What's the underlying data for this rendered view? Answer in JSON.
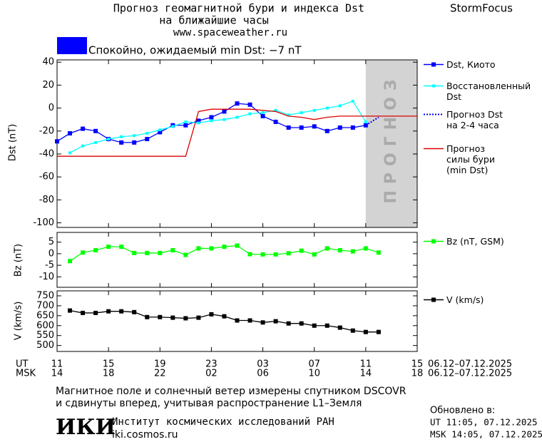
{
  "header": {
    "title_line1": "Прогноз геомагнитной бури и индекса Dst",
    "title_line2": "на ближайшие часы",
    "url": "www.spaceweather.ru",
    "brand": "StormFocus"
  },
  "status": {
    "text": "Спокойно, ожидаемый min Dst: −7 nT",
    "color": "#0000ff"
  },
  "time_axis": {
    "xlim": [
      0,
      28
    ],
    "ut_label": "UT",
    "ut_ticks": [
      {
        "value": 0,
        "label": "11"
      },
      {
        "value": 4,
        "label": "15"
      },
      {
        "value": 8,
        "label": "19"
      },
      {
        "value": 12,
        "label": "23"
      },
      {
        "value": 16,
        "label": "03"
      },
      {
        "value": 20,
        "label": "07"
      },
      {
        "value": 24,
        "label": "11"
      },
      {
        "value": 28,
        "label": "15"
      }
    ],
    "ut_dates": "06.12–07.12.2025",
    "msk_label": "MSK",
    "msk_ticks": [
      {
        "value": 0,
        "label": "14"
      },
      {
        "value": 4,
        "label": "18"
      },
      {
        "value": 8,
        "label": "22"
      },
      {
        "value": 12,
        "label": "02"
      },
      {
        "value": 16,
        "label": "06"
      },
      {
        "value": 20,
        "label": "10"
      },
      {
        "value": 24,
        "label": "14"
      },
      {
        "value": 28,
        "label": "18"
      }
    ],
    "msk_dates": "06.12–07.12.2025"
  },
  "chart_data": [
    {
      "type": "line",
      "ylabel": "Dst (nT)",
      "ylim": [
        -104,
        42
      ],
      "yticks": [
        40,
        20,
        0,
        -20,
        -40,
        -60,
        -80,
        -100
      ],
      "forecast_zone": [
        24,
        28
      ],
      "forecast_label": "ПРОГНОЗ",
      "series": [
        {
          "name": "Dst, Киото",
          "color": "#0000ff",
          "marker": "square",
          "x": [
            0,
            1,
            2,
            3,
            4,
            5,
            6,
            7,
            8,
            9,
            10,
            11,
            12,
            13,
            14,
            15,
            16,
            17,
            18,
            19,
            20,
            21,
            22,
            23,
            24
          ],
          "values": [
            -29,
            -22,
            -18,
            -20,
            -27,
            -30,
            -30,
            -27,
            -21,
            -15,
            -15,
            -11,
            -8,
            -3,
            4,
            3,
            -7,
            -12,
            -17,
            -17,
            -16,
            -20,
            -17,
            -17,
            -15
          ]
        },
        {
          "name": "Восстановленный\nDst",
          "color": "#00ffff",
          "marker": "small-square",
          "x": [
            1,
            2,
            3,
            4,
            5,
            6,
            7,
            8,
            9,
            10,
            11,
            12,
            13,
            14,
            15,
            16,
            17,
            18,
            19,
            20,
            21,
            22,
            23,
            24
          ],
          "values": [
            -39,
            -33,
            -30,
            -27,
            -25,
            -24,
            -22,
            -19,
            -16,
            -12,
            -13,
            -11,
            -10,
            -8,
            -5,
            -4,
            -2,
            -6,
            -4,
            -2,
            0,
            2,
            6,
            -12
          ]
        },
        {
          "name": "Прогноз Dst\nна 2-4 часа",
          "color": "#0000ff",
          "dash": true,
          "x": [
            24,
            25
          ],
          "values": [
            -15,
            -8
          ]
        },
        {
          "name": "Прогноз\nсилы бури\n(min Dst)",
          "color": "#dd0000",
          "x": [
            0,
            10,
            11,
            12,
            13,
            14,
            15,
            16,
            17,
            18,
            19,
            20,
            21,
            22,
            23,
            24,
            28
          ],
          "values": [
            -42,
            -42,
            -3,
            -1,
            -1,
            -1,
            -1,
            -2,
            -3,
            -7,
            -8,
            -10,
            -8,
            -7,
            -7,
            -7,
            -7
          ]
        }
      ]
    },
    {
      "type": "line",
      "ylabel": "Bz (nT)",
      "ylim": [
        -14.5,
        9.2
      ],
      "yticks": [
        5,
        0,
        -5,
        -10
      ],
      "series": [
        {
          "name": "Bz (nT, GSM)",
          "color": "#00ff00",
          "marker": "square",
          "x": [
            1,
            2,
            3,
            4,
            5,
            6,
            7,
            8,
            9,
            10,
            11,
            12,
            13,
            14,
            15,
            16,
            17,
            18,
            19,
            20,
            21,
            22,
            23,
            24,
            25
          ],
          "values": [
            -3.2,
            0.5,
            1.5,
            3,
            3,
            0.3,
            0.3,
            0.3,
            1.5,
            -0.5,
            2.3,
            2.3,
            3,
            3.5,
            -0.2,
            -0.3,
            -0.3,
            0.2,
            1.3,
            -0.3,
            2.3,
            1.5,
            1,
            2.3,
            0.5
          ]
        }
      ]
    },
    {
      "type": "line",
      "ylabel": "V (km/s)",
      "ylim": [
        470,
        775
      ],
      "yticks": [
        750,
        700,
        650,
        600,
        550,
        500
      ],
      "series": [
        {
          "name": "V (km/s)",
          "color": "#000000",
          "marker": "square",
          "x": [
            1,
            2,
            3,
            4,
            5,
            6,
            7,
            8,
            9,
            10,
            11,
            12,
            13,
            14,
            15,
            16,
            17,
            18,
            19,
            20,
            21,
            22,
            23,
            24,
            25
          ],
          "values": [
            676,
            664,
            664,
            672,
            672,
            668,
            643,
            643,
            640,
            637,
            640,
            657,
            647,
            626,
            626,
            616,
            622,
            611,
            611,
            600,
            600,
            590,
            575,
            568,
            568
          ]
        }
      ]
    }
  ],
  "footer": {
    "note_line1": "Магнитное поле и солнечный ветер измерены спутником DSCOVR",
    "note_line2": "и сдвинуты вперед, учитывая распространение L1–Земля",
    "logo": "ИКИ",
    "institute": "Институт космических исследований РАН",
    "site": "iki.cosmos.ru",
    "updated_label": "Обновлено в:",
    "updated_ut": "UT  11:05, 07.12.2025",
    "updated_msk": "MSK 14:05, 07.12.2025"
  }
}
